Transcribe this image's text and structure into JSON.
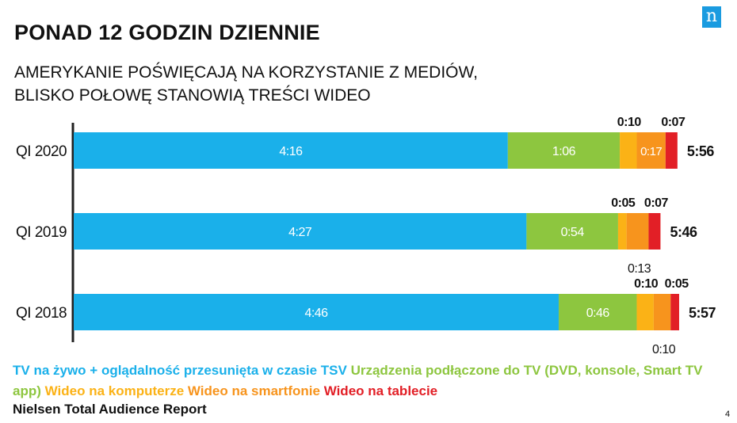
{
  "title": "PONAD 12 GODZIN DZIENNIE",
  "subtitle_lines": [
    "AMERYKANIE POŚWIĘCAJĄ NA KORZYSTANIE Z MEDIÓW,",
    "BLISKO POŁOWĘ STANOWIĄ TREŚCI WIDEO"
  ],
  "logo_letter": "n",
  "page_number": "4",
  "source": "Nielsen Total Audience Report",
  "colors": {
    "tv": "#1ab0ea",
    "devices": "#8dc63f",
    "computer": "#fbb216",
    "smartphone": "#f7941d",
    "tablet": "#e21f26",
    "axis": "#222222"
  },
  "legend": [
    {
      "label": "TV na żywo + oglądalność przesunięta w czasie TSV",
      "color": "#1ab0ea"
    },
    {
      "label": "Urządzenia podłączone do TV (DVD, konsole, Smart TV app)",
      "color": "#8dc63f"
    },
    {
      "label": "Wideo na komputerze",
      "color": "#fbb216"
    },
    {
      "label": "Wideo na smartfonie",
      "color": "#f7941d"
    },
    {
      "label": "Wideo na tablecie",
      "color": "#e21f26"
    }
  ],
  "chart_data": {
    "type": "bar",
    "orientation": "horizontal",
    "stacked": true,
    "title": "PONAD 12 GODZIN DZIENNIE",
    "units": "h:mm per day",
    "categories": [
      "Q1 2020",
      "Q1 2019",
      "Q1 2018"
    ],
    "category_labels": [
      "QI 2020",
      "QI 2019",
      "QI 2018"
    ],
    "series": [
      {
        "name": "TV na żywo + oglądalność przesunięta w czasie TSV",
        "key": "tv",
        "labels": [
          "4:16",
          "4:27",
          "4:46"
        ],
        "values_min": [
          256,
          267,
          286
        ]
      },
      {
        "name": "Urządzenia podłączone do TV (DVD, konsole, Smart TV app)",
        "key": "devices",
        "labels": [
          "1:06",
          "0:54",
          "0:46"
        ],
        "values_min": [
          66,
          54,
          46
        ]
      },
      {
        "name": "Wideo na komputerze",
        "key": "computer",
        "labels": [
          "0:10",
          "0:05",
          "0:10"
        ],
        "values_min": [
          10,
          5,
          10
        ]
      },
      {
        "name": "Wideo na smartfonie",
        "key": "smartphone",
        "labels": [
          "0:17",
          "0:13",
          "0:10"
        ],
        "values_min": [
          17,
          13,
          10
        ]
      },
      {
        "name": "Wideo na tablecie",
        "key": "tablet",
        "labels": [
          "0:07",
          "0:07",
          "0:05"
        ],
        "values_min": [
          7,
          7,
          5
        ]
      }
    ],
    "totals": [
      "5:56",
      "5:46",
      "5:57"
    ]
  }
}
